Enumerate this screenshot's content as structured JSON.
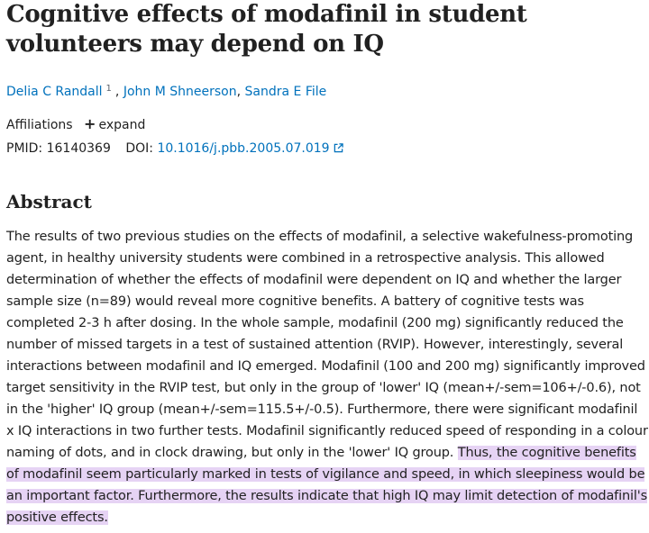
{
  "article": {
    "title": "Cognitive effects of modafinil in student volunteers may depend on IQ",
    "authors": [
      {
        "name": "Delia C Randall",
        "affiliation_ref": "1"
      },
      {
        "name": "John M Shneerson"
      },
      {
        "name": "Sandra E File"
      }
    ],
    "author_separator": ",",
    "affiliations_label": "Affiliations",
    "expand_label": "expand",
    "pmid_label": "PMID:",
    "pmid_value": "16140369",
    "doi_label": "DOI:",
    "doi_value": "10.1016/j.pbb.2005.07.019"
  },
  "abstract": {
    "heading": "Abstract",
    "text_plain": "The results of two previous studies on the effects of modafinil, a selective wakefulness-promoting agent, in healthy university students were combined in a retrospective analysis. This allowed determination of whether the effects of modafinil were dependent on IQ and whether the larger sample size (n=89) would reveal more cognitive benefits. A battery of cognitive tests was completed 2-3 h after dosing. In the whole sample, modafinil (200 mg) significantly reduced the number of missed targets in a test of sustained attention (RVIP). However, interestingly, several interactions between modafinil and IQ emerged. Modafinil (100 and 200 mg) significantly improved target sensitivity in the RVIP test, but only in the group of 'lower' IQ (mean+/-sem=106+/-0.6), not in the 'higher' IQ group (mean+/-sem=115.5+/-0.5). Furthermore, there were significant modafinil x IQ interactions in two further tests. Modafinil significantly reduced speed of responding in a colour naming of dots, and in clock drawing, but only in the 'lower' IQ group.",
    "text_highlighted": "Thus, the cognitive benefits of modafinil seem particularly marked in tests of vigilance and speed, in which sleepiness would be an important factor. Furthermore, the results indicate that high IQ may limit detection of modafinil's positive effects.",
    "highlight_color": "#e6d3f4"
  },
  "colors": {
    "link": "#0071bc",
    "text": "#212121"
  }
}
